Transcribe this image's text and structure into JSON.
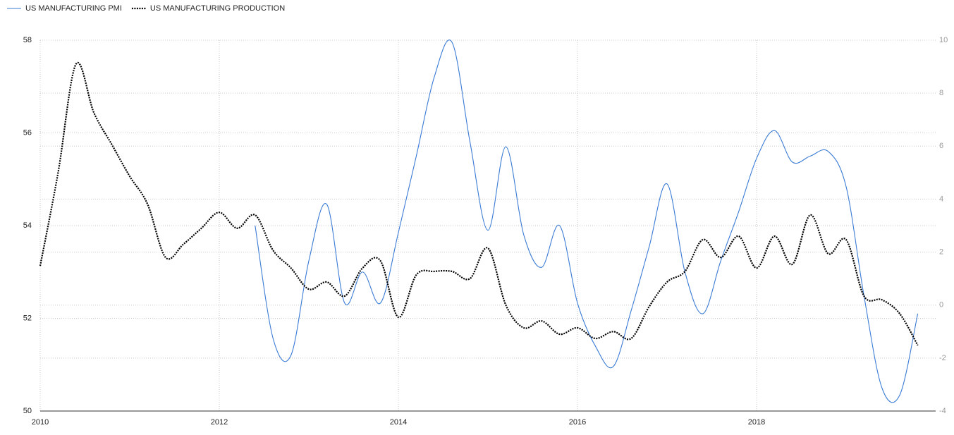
{
  "chart_data": {
    "type": "line",
    "x": [
      2010,
      2010.2,
      2010.4,
      2010.6,
      2010.8,
      2011,
      2011.2,
      2011.4,
      2011.6,
      2011.8,
      2012,
      2012.2,
      2012.4,
      2012.6,
      2012.8,
      2013,
      2013.2,
      2013.4,
      2013.6,
      2013.8,
      2014,
      2014.2,
      2014.4,
      2014.6,
      2014.8,
      2015,
      2015.2,
      2015.4,
      2015.6,
      2015.8,
      2016,
      2016.2,
      2016.4,
      2016.6,
      2016.8,
      2017,
      2017.2,
      2017.4,
      2017.6,
      2017.8,
      2018,
      2018.2,
      2018.4,
      2018.6,
      2018.8,
      2019,
      2019.2,
      2019.4,
      2019.6,
      2019.8
    ],
    "series": [
      {
        "name": "US MANUFACTURING PMI",
        "color": "#3a7bd5",
        "line_style": "solid",
        "axis": "y",
        "values": [
          null,
          null,
          null,
          null,
          null,
          null,
          null,
          null,
          null,
          null,
          null,
          null,
          54.0,
          51.57,
          51.2,
          53.24,
          54.46,
          52.33,
          53.0,
          52.33,
          53.85,
          55.5,
          57.2,
          57.95,
          55.8,
          53.9,
          55.7,
          53.8,
          53.1,
          54.0,
          52.33,
          51.4,
          50.96,
          52.17,
          53.54,
          54.9,
          53.0,
          52.1,
          53.24,
          54.3,
          55.45,
          56.05,
          55.37,
          55.5,
          55.6,
          54.84,
          52.48,
          50.5,
          50.35,
          52.1
        ]
      },
      {
        "name": "US MANUFACTURING PRODUCTION",
        "color": "#000000",
        "line_style": "dotted",
        "axis": "y2",
        "values": [
          1.48,
          5.0,
          9.1,
          7.26,
          6.06,
          4.86,
          3.8,
          1.8,
          2.3,
          2.9,
          3.5,
          2.9,
          3.4,
          2.07,
          1.4,
          0.6,
          0.87,
          0.34,
          1.4,
          1.67,
          -0.46,
          1.14,
          1.27,
          1.27,
          1.0,
          2.15,
          0.0,
          -0.86,
          -0.6,
          -1.1,
          -0.86,
          -1.26,
          -1.0,
          -1.26,
          -0.06,
          0.87,
          1.27,
          2.47,
          1.8,
          2.6,
          1.4,
          2.6,
          1.54,
          3.4,
          1.94,
          2.47,
          0.34,
          0.2,
          -0.33,
          -1.52
        ]
      }
    ],
    "xlim": [
      2010,
      2020
    ],
    "xticks": [
      2010,
      2012,
      2014,
      2016,
      2018
    ],
    "ylim": [
      50,
      58
    ],
    "yticks": [
      50,
      52,
      54,
      56,
      58
    ],
    "y2lim": [
      -4,
      10
    ],
    "y2ticks": [
      -4,
      -2,
      0,
      2,
      4,
      6,
      8,
      10
    ],
    "grid": true,
    "legend": "top-left"
  }
}
